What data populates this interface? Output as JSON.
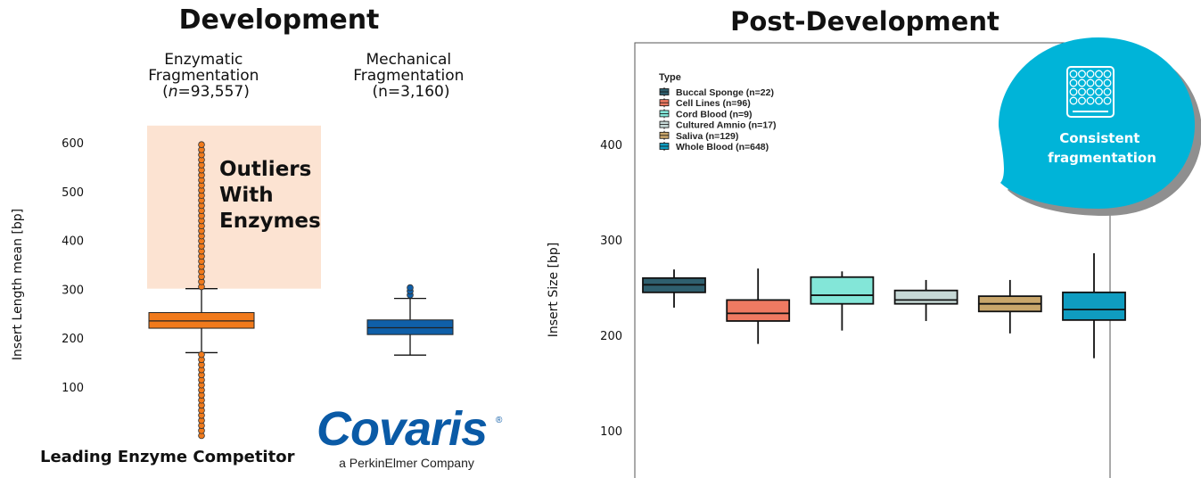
{
  "left_panel": {
    "title": "Development",
    "footer": "Leading Enzyme Competitor",
    "annotation_lines": [
      "Outliers",
      "With",
      "Enzymes"
    ],
    "logo": {
      "name": "Covaris",
      "registered": "®",
      "tagline": "a PerkinElmer Company"
    }
  },
  "right_panel": {
    "title": "Post-Development",
    "badge": {
      "icon": "well-plate-icon",
      "lines": [
        "Consistent",
        "fragmentation"
      ],
      "color": "#00b4d8"
    }
  },
  "chart_data": [
    {
      "type": "box",
      "ylabel": "Insert Length mean [bp]",
      "ylim": [
        0,
        620
      ],
      "yticks": [
        100,
        200,
        300,
        400,
        500,
        600
      ],
      "series": [
        {
          "name_lines": [
            "Enzymatic",
            "Fragmentation",
            "(n=93,557)"
          ],
          "n_value": "93,557",
          "color": "#f07a1c",
          "whisker_low": 170,
          "q1": 220,
          "median": 235,
          "q3": 252,
          "whisker_high": 301,
          "outlier_range_high": [
            305,
            596
          ],
          "outlier_range_low": [
            0,
            166
          ]
        },
        {
          "name_lines": [
            "Mechanical",
            "Fragmentation",
            "(n=3,160)"
          ],
          "color": "#0f5fa8",
          "whisker_low": 165,
          "q1": 207,
          "median": 221,
          "q3": 237,
          "whisker_high": 281,
          "outliers": [
            288,
            296,
            303
          ]
        }
      ]
    },
    {
      "type": "box",
      "ylabel": "Insert Size [bp]",
      "ylim": [
        50,
        500
      ],
      "yticks": [
        100,
        200,
        300,
        400
      ],
      "legend": {
        "title": "Type",
        "position": "top-left"
      },
      "series": [
        {
          "name": "Buccal Sponge (n=22)",
          "color": "#2f5f6e",
          "whisker_low": 229,
          "q1": 245,
          "median": 253,
          "q3": 260,
          "whisker_high": 269
        },
        {
          "name": "Cell Lines (n=96)",
          "color": "#ef7a62",
          "whisker_low": 191,
          "q1": 215,
          "median": 223,
          "q3": 237,
          "whisker_high": 270
        },
        {
          "name": "Cord Blood (n=9)",
          "color": "#83e6d8",
          "whisker_low": 205,
          "q1": 233,
          "median": 242,
          "q3": 261,
          "whisker_high": 267
        },
        {
          "name": "Cultured Amnio (n=17)",
          "color": "#c6d8d6",
          "whisker_low": 215,
          "q1": 233,
          "median": 237,
          "q3": 247,
          "whisker_high": 258
        },
        {
          "name": "Saliva (n=129)",
          "color": "#c9a66b",
          "whisker_low": 202,
          "q1": 225,
          "median": 233,
          "q3": 241,
          "whisker_high": 258
        },
        {
          "name": "Whole Blood (n=648)",
          "color": "#0f9cc0",
          "whisker_low": 176,
          "q1": 216,
          "median": 227,
          "q3": 245,
          "whisker_high": 286
        }
      ]
    }
  ]
}
